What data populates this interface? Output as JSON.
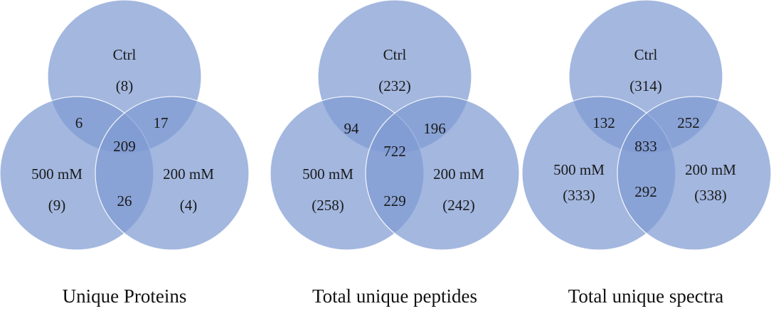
{
  "colors": {
    "circle_fill": "#7f9bd3",
    "circle_stroke": "#ffffff",
    "text": "#1a1a1a"
  },
  "diagrams": [
    {
      "caption": "Unique Proteins",
      "ctrl": "Ctrl",
      "ctrl_count": "(8)",
      "left": "500 mM",
      "left_count": "(9)",
      "right": "200 mM",
      "right_count": "(4)",
      "ctrl_left": "6",
      "ctrl_right": "17",
      "left_right": "26",
      "all": "209"
    },
    {
      "caption": "Total unique peptides",
      "ctrl": "Ctrl",
      "ctrl_count": "(232)",
      "left": "500 mM",
      "left_count": "(258)",
      "right": "200 mM",
      "right_count": "(242)",
      "ctrl_left": "94",
      "ctrl_right": "196",
      "left_right": "229",
      "all": "722"
    },
    {
      "caption": "Total unique spectra",
      "ctrl": "Ctrl",
      "ctrl_count": "(314)",
      "left": "500 mM",
      "left_count": "(333)",
      "right": "200 mM",
      "right_count": "(338)",
      "ctrl_left": "132",
      "ctrl_right": "252",
      "left_right": "292",
      "all": "833"
    }
  ]
}
